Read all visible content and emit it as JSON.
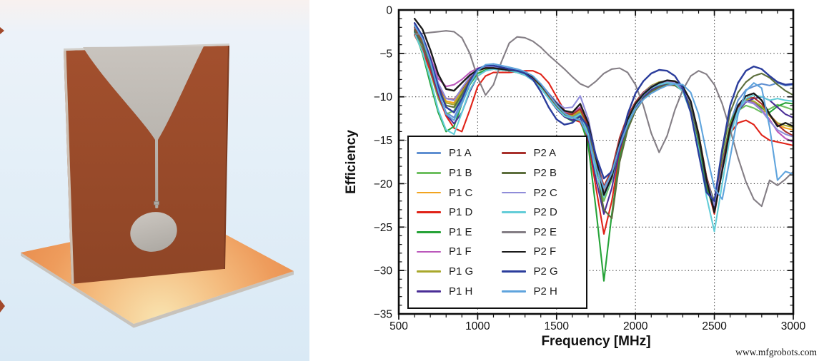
{
  "watermark": "www.mfgrobots.com",
  "antenna": {
    "bg_top": "#f8f1ef",
    "bg_upper": "#ecf2f9",
    "bg_mid": "#e6f0f8",
    "bg_bottom": "#d9e9f5",
    "board_top": "#a3502e",
    "board_bottom": "#8e4526",
    "board_edge": "#d2cfca",
    "board_side": "#cdbfb2",
    "board_right_edge": "#7d3a1f",
    "metal_top": "#c9c4be",
    "metal_bottom": "#aeaaa4",
    "ground_highlight": "#f9e5b2",
    "ground_mid": "#f4bd80",
    "ground_orange": "#ee9c5c",
    "ground_deep": "#e98e4f",
    "ground_edge": "#c8c3bc",
    "sliver": "#a2492b"
  },
  "chart_data": {
    "type": "line",
    "title": "",
    "xlabel": "Frequency [MHz]",
    "ylabel": "Efficiency",
    "xlim": [
      500,
      3000
    ],
    "ylim": [
      -35,
      0
    ],
    "xticks": [
      500,
      1000,
      1500,
      2000,
      2500,
      3000
    ],
    "yticks": [
      0,
      -5,
      -10,
      -15,
      -20,
      -25,
      -30,
      -35
    ],
    "grid": "dotted major gridlines",
    "legend_position": "lower-left, 2 columns",
    "x": [
      600,
      650,
      700,
      750,
      800,
      850,
      900,
      950,
      1000,
      1050,
      1100,
      1150,
      1200,
      1250,
      1300,
      1350,
      1400,
      1450,
      1500,
      1550,
      1600,
      1650,
      1700,
      1750,
      1800,
      1850,
      1900,
      1950,
      2000,
      2050,
      2100,
      2150,
      2200,
      2250,
      2300,
      2350,
      2400,
      2450,
      2500,
      2550,
      2600,
      2650,
      2700,
      2750,
      2800,
      2850,
      2900,
      2950,
      3000
    ],
    "series": [
      {
        "name": "P1 A",
        "color": "#5f8fd1",
        "values": [
          -2.2,
          -3.8,
          -6.5,
          -9.5,
          -11.8,
          -12.4,
          -10.5,
          -8.2,
          -7.0,
          -6.5,
          -6.4,
          -6.6,
          -6.8,
          -7.0,
          -7.2,
          -7.7,
          -8.6,
          -9.8,
          -11.0,
          -12.0,
          -12.4,
          -11.8,
          -13.8,
          -17.8,
          -21.0,
          -19.0,
          -15.2,
          -12.6,
          -10.9,
          -9.7,
          -8.9,
          -8.5,
          -8.3,
          -8.4,
          -9.0,
          -10.8,
          -14.5,
          -19.5,
          -22.8,
          -18.2,
          -13.0,
          -10.4,
          -9.2,
          -8.8,
          -8.5,
          -8.7,
          -8.4,
          -8.7,
          -8.6
        ]
      },
      {
        "name": "P1 B",
        "color": "#6dbf5f",
        "values": [
          -2.6,
          -4.4,
          -7.2,
          -10.2,
          -12.0,
          -11.6,
          -9.8,
          -8.0,
          -7.0,
          -6.7,
          -6.7,
          -6.9,
          -7.0,
          -7.1,
          -7.4,
          -8.0,
          -8.8,
          -10.0,
          -11.2,
          -12.1,
          -12.6,
          -12.2,
          -14.2,
          -18.5,
          -22.0,
          -19.5,
          -15.5,
          -12.8,
          -11.0,
          -9.8,
          -9.0,
          -8.6,
          -8.4,
          -8.5,
          -9.2,
          -11.2,
          -15.0,
          -20.0,
          -22.8,
          -17.8,
          -13.4,
          -11.6,
          -11.0,
          -11.3,
          -11.8,
          -11.4,
          -10.9,
          -11.2,
          -11.5
        ]
      },
      {
        "name": "P1 C",
        "color": "#f2a41f",
        "values": [
          -1.9,
          -3.4,
          -6.0,
          -8.8,
          -10.5,
          -10.7,
          -9.2,
          -7.8,
          -6.9,
          -6.6,
          -6.6,
          -6.8,
          -6.9,
          -7.0,
          -7.3,
          -7.8,
          -8.7,
          -9.9,
          -11.0,
          -11.9,
          -12.1,
          -11.5,
          -13.4,
          -17.2,
          -20.8,
          -18.8,
          -15.0,
          -12.4,
          -10.7,
          -9.6,
          -8.8,
          -8.4,
          -8.2,
          -8.3,
          -8.9,
          -10.6,
          -14.2,
          -19.2,
          -22.4,
          -17.6,
          -13.2,
          -11.2,
          -10.4,
          -10.6,
          -11.2,
          -12.2,
          -13.2,
          -13.6,
          -13.8
        ]
      },
      {
        "name": "P1 D",
        "color": "#e02318",
        "values": [
          -2.9,
          -4.6,
          -7.0,
          -9.8,
          -12.2,
          -13.6,
          -14.0,
          -11.5,
          -8.8,
          -7.6,
          -7.2,
          -7.2,
          -7.2,
          -7.1,
          -7.0,
          -7.0,
          -7.4,
          -8.4,
          -10.0,
          -11.6,
          -12.6,
          -12.9,
          -15.0,
          -20.5,
          -25.8,
          -22.0,
          -16.5,
          -13.4,
          -11.4,
          -10.2,
          -9.4,
          -8.9,
          -8.7,
          -8.6,
          -9.0,
          -10.8,
          -14.8,
          -20.0,
          -23.5,
          -18.5,
          -14.2,
          -13.0,
          -12.7,
          -13.2,
          -14.4,
          -15.0,
          -15.2,
          -15.4,
          -15.6
        ]
      },
      {
        "name": "P1 E",
        "color": "#26a338",
        "values": [
          -2.5,
          -5.0,
          -8.5,
          -11.8,
          -14.0,
          -13.4,
          -10.8,
          -8.6,
          -7.3,
          -6.9,
          -6.8,
          -6.9,
          -7.0,
          -7.1,
          -7.4,
          -8.0,
          -8.9,
          -10.1,
          -11.3,
          -12.3,
          -12.8,
          -12.6,
          -15.5,
          -23.0,
          -31.2,
          -23.5,
          -17.0,
          -13.6,
          -11.5,
          -10.2,
          -9.3,
          -8.8,
          -8.5,
          -8.5,
          -9.1,
          -11.0,
          -15.2,
          -20.5,
          -23.0,
          -17.5,
          -13.0,
          -11.2,
          -10.4,
          -10.6,
          -11.3,
          -11.8,
          -11.1,
          -10.7,
          -10.8
        ]
      },
      {
        "name": "P1 F",
        "color": "#bb58bb",
        "values": [
          -1.6,
          -3.0,
          -5.4,
          -7.9,
          -8.8,
          -8.6,
          -8.0,
          -7.2,
          -6.7,
          -6.5,
          -6.5,
          -6.7,
          -6.9,
          -7.0,
          -7.3,
          -7.8,
          -8.7,
          -9.8,
          -10.9,
          -11.7,
          -11.8,
          -11.2,
          -13.2,
          -17.0,
          -21.5,
          -19.2,
          -15.3,
          -12.7,
          -10.9,
          -9.7,
          -8.9,
          -8.5,
          -8.3,
          -8.4,
          -9.0,
          -10.8,
          -14.4,
          -19.4,
          -22.6,
          -18.0,
          -13.6,
          -11.3,
          -10.5,
          -10.7,
          -11.5,
          -12.6,
          -14.0,
          -14.8,
          -15.2
        ]
      },
      {
        "name": "P1 G",
        "color": "#a9a82c",
        "values": [
          -2.0,
          -3.6,
          -6.2,
          -9.0,
          -10.7,
          -10.9,
          -9.4,
          -7.9,
          -6.9,
          -6.6,
          -6.6,
          -6.8,
          -7.0,
          -7.1,
          -7.4,
          -7.9,
          -8.8,
          -10.0,
          -11.1,
          -12.0,
          -12.2,
          -11.7,
          -13.6,
          -17.5,
          -20.5,
          -18.6,
          -14.8,
          -12.3,
          -10.6,
          -9.5,
          -8.7,
          -8.3,
          -8.2,
          -8.3,
          -8.9,
          -10.7,
          -14.3,
          -19.3,
          -22.5,
          -17.7,
          -13.3,
          -11.1,
          -10.3,
          -10.5,
          -11.1,
          -12.1,
          -13.0,
          -13.3,
          -13.5
        ]
      },
      {
        "name": "P1 H",
        "color": "#4a2e96",
        "values": [
          -2.4,
          -4.0,
          -6.6,
          -9.6,
          -12.0,
          -13.1,
          -11.8,
          -9.4,
          -7.6,
          -7.0,
          -6.8,
          -6.9,
          -7.0,
          -7.2,
          -7.5,
          -8.1,
          -9.0,
          -10.2,
          -11.4,
          -12.3,
          -12.7,
          -12.3,
          -14.6,
          -19.5,
          -23.5,
          -20.5,
          -16.0,
          -13.2,
          -11.2,
          -10.0,
          -9.2,
          -8.7,
          -8.5,
          -8.6,
          -9.2,
          -11.0,
          -14.8,
          -19.8,
          -22.7,
          -18.2,
          -13.8,
          -11.6,
          -10.6,
          -10.2,
          -10.0,
          -10.4,
          -11.2,
          -12.0,
          -12.4
        ]
      },
      {
        "name": "P2 A",
        "color": "#a8302c",
        "values": [
          -2.0,
          -3.5,
          -6.0,
          -8.7,
          -10.2,
          -10.3,
          -9.1,
          -7.8,
          -6.9,
          -6.6,
          -6.6,
          -6.8,
          -6.9,
          -7.1,
          -7.3,
          -7.8,
          -8.7,
          -9.9,
          -11.0,
          -11.9,
          -12.0,
          -11.4,
          -13.3,
          -17.1,
          -20.3,
          -18.4,
          -14.7,
          -12.2,
          -10.6,
          -9.5,
          -8.8,
          -8.4,
          -8.2,
          -8.3,
          -8.9,
          -10.6,
          -14.3,
          -19.2,
          -22.3,
          -17.8,
          -13.5,
          -11.2,
          -10.2,
          -10.1,
          -10.8,
          -12.0,
          -13.2,
          -14.0,
          -14.5
        ]
      },
      {
        "name": "P2 B",
        "color": "#5c6e3c",
        "values": [
          -2.3,
          -3.9,
          -6.4,
          -9.2,
          -11.0,
          -11.2,
          -9.7,
          -8.1,
          -7.0,
          -6.7,
          -6.7,
          -6.9,
          -7.0,
          -7.2,
          -7.5,
          -8.0,
          -8.9,
          -10.1,
          -11.2,
          -12.1,
          -12.5,
          -12.0,
          -14.0,
          -18.2,
          -23.0,
          -24.0,
          -17.5,
          -13.8,
          -11.6,
          -10.3,
          -9.4,
          -8.9,
          -8.6,
          -8.7,
          -9.3,
          -11.1,
          -14.9,
          -19.6,
          -22.0,
          -16.5,
          -11.8,
          -9.5,
          -8.3,
          -7.6,
          -7.3,
          -7.8,
          -8.6,
          -9.3,
          -9.8
        ]
      },
      {
        "name": "P2 C",
        "color": "#8f8cd9",
        "values": [
          -1.8,
          -3.2,
          -5.7,
          -8.4,
          -10.2,
          -10.4,
          -9.0,
          -7.7,
          -6.8,
          -6.5,
          -6.5,
          -6.7,
          -6.9,
          -7.0,
          -7.2,
          -7.7,
          -8.5,
          -9.6,
          -10.6,
          -11.3,
          -11.2,
          -9.9,
          -12.5,
          -16.8,
          -21.0,
          -19.0,
          -15.1,
          -12.5,
          -10.8,
          -9.6,
          -8.8,
          -8.4,
          -8.3,
          -8.4,
          -9.0,
          -10.7,
          -14.4,
          -19.4,
          -22.5,
          -18.1,
          -13.7,
          -11.4,
          -10.5,
          -10.8,
          -11.6,
          -12.8,
          -13.8,
          -14.3,
          -14.6
        ]
      },
      {
        "name": "P2 D",
        "color": "#63cdd8",
        "values": [
          -2.7,
          -4.8,
          -8.0,
          -11.5,
          -13.8,
          -14.3,
          -11.8,
          -9.2,
          -7.6,
          -7.0,
          -6.8,
          -6.9,
          -7.0,
          -7.2,
          -7.5,
          -8.1,
          -9.0,
          -10.2,
          -11.3,
          -12.2,
          -12.5,
          -12.0,
          -14.3,
          -18.8,
          -21.5,
          -19.3,
          -15.4,
          -12.8,
          -11.0,
          -9.8,
          -9.0,
          -8.6,
          -8.4,
          -8.5,
          -9.4,
          -11.8,
          -16.0,
          -21.5,
          -25.5,
          -20.0,
          -14.5,
          -11.6,
          -10.2,
          -9.8,
          -10.0,
          -10.4,
          -10.2,
          -10.4,
          -10.5
        ]
      },
      {
        "name": "P2 E",
        "color": "#847e85",
        "values": [
          -2.8,
          -2.7,
          -2.6,
          -2.5,
          -2.4,
          -2.5,
          -3.2,
          -5.0,
          -7.8,
          -9.8,
          -8.6,
          -6.0,
          -3.8,
          -3.1,
          -3.2,
          -3.6,
          -4.3,
          -5.2,
          -6.0,
          -6.8,
          -7.7,
          -8.5,
          -8.9,
          -8.2,
          -7.3,
          -6.8,
          -6.7,
          -7.2,
          -8.6,
          -11.0,
          -14.2,
          -16.4,
          -14.5,
          -11.5,
          -9.2,
          -7.6,
          -7.0,
          -7.4,
          -8.6,
          -10.8,
          -13.8,
          -17.0,
          -19.8,
          -21.8,
          -22.6,
          -19.6,
          -20.2,
          -19.5,
          -18.6
        ]
      },
      {
        "name": "P2 F",
        "color": "#1a1a1a",
        "values": [
          -1.0,
          -2.2,
          -4.6,
          -7.4,
          -9.1,
          -9.3,
          -8.4,
          -7.5,
          -6.9,
          -6.7,
          -6.7,
          -6.8,
          -6.9,
          -7.0,
          -7.2,
          -7.7,
          -8.6,
          -9.7,
          -10.8,
          -11.6,
          -11.8,
          -10.8,
          -13.0,
          -17.0,
          -21.3,
          -19.2,
          -15.2,
          -12.6,
          -10.8,
          -9.7,
          -8.9,
          -8.4,
          -8.1,
          -8.2,
          -8.8,
          -10.5,
          -14.3,
          -19.5,
          -23.3,
          -18.5,
          -13.6,
          -11.0,
          -9.9,
          -9.6,
          -10.4,
          -12.0,
          -13.4,
          -13.0,
          -13.4
        ]
      },
      {
        "name": "P2 G",
        "color": "#2b3d9c",
        "values": [
          -1.5,
          -3.0,
          -5.6,
          -8.8,
          -11.2,
          -11.8,
          -10.2,
          -8.2,
          -6.8,
          -6.4,
          -6.4,
          -6.6,
          -6.8,
          -7.0,
          -7.3,
          -8.0,
          -9.4,
          -11.2,
          -12.6,
          -13.2,
          -13.0,
          -12.2,
          -13.5,
          -16.8,
          -19.4,
          -18.6,
          -15.8,
          -12.0,
          -9.6,
          -8.2,
          -7.3,
          -6.9,
          -7.0,
          -7.6,
          -9.0,
          -11.8,
          -16.5,
          -21.0,
          -22.0,
          -16.0,
          -11.0,
          -8.4,
          -7.0,
          -6.5,
          -6.8,
          -7.6,
          -8.3,
          -8.6,
          -8.5
        ]
      },
      {
        "name": "P2 H",
        "color": "#5fa4dd",
        "values": [
          -1.8,
          -3.3,
          -6.0,
          -9.3,
          -12.0,
          -12.7,
          -10.8,
          -8.5,
          -7.0,
          -6.3,
          -6.2,
          -6.4,
          -6.6,
          -6.8,
          -7.1,
          -7.6,
          -8.5,
          -9.7,
          -10.9,
          -11.9,
          -12.4,
          -12.7,
          -14.5,
          -18.0,
          -20.5,
          -18.8,
          -15.6,
          -13.2,
          -11.4,
          -10.3,
          -9.6,
          -9.1,
          -8.7,
          -8.5,
          -8.6,
          -9.5,
          -12.0,
          -16.5,
          -20.5,
          -21.8,
          -17.0,
          -12.0,
          -9.3,
          -8.4,
          -9.0,
          -13.5,
          -19.6,
          -18.6,
          -18.9
        ]
      }
    ]
  }
}
